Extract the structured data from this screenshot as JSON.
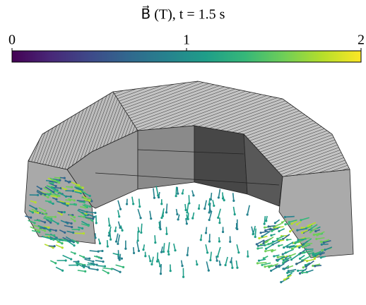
{
  "colorbar": {
    "title": "B⃗ (T), t = 1.5 s",
    "range": [
      0,
      2
    ],
    "ticks": [
      0,
      1,
      2
    ],
    "colormap": "viridis"
  }
}
